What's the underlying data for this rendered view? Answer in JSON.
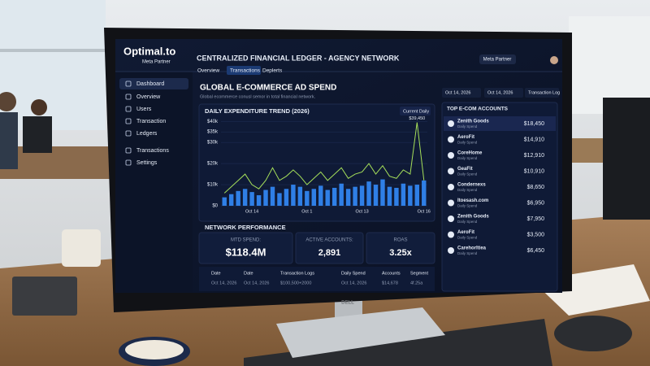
{
  "sidebar": {
    "brand": "Optimal.to",
    "partner": "Meta Partner",
    "nav": [
      "Dashboard",
      "Overview",
      "Users",
      "Transaction",
      "Ledgers",
      "Transactions",
      "Settings"
    ]
  },
  "header": {
    "title": "CENTRALIZED FINANCIAL LEDGER - AGENCY NETWORK",
    "badge": "Meta Partner",
    "tabs": [
      "Overview",
      "Transactions",
      "Deplerts"
    ]
  },
  "main": {
    "title": "GLOBAL E-COMMERCE AD SPEND",
    "subtitle": "Global ecommerce conusl semor in total financial network.",
    "filters": [
      "Oct 14, 2026",
      "Oct 14, 2026",
      "Transaction Log"
    ]
  },
  "chart_data": {
    "type": "bar",
    "title": "DAILY EXPENDITURE TREND (2026)",
    "dropdown": "Current Daily",
    "categories": [
      null,
      null,
      null,
      null,
      "Oct 14",
      null,
      null,
      null,
      null,
      null,
      null,
      null,
      "Oct 1",
      null,
      null,
      null,
      null,
      null,
      null,
      null,
      "Oct 13",
      null,
      null,
      null,
      null,
      null,
      null,
      null,
      null,
      "Oct 16"
    ],
    "series": [
      {
        "color": "#2f7fe6",
        "values": [
          4000,
          5500,
          7000,
          8000,
          6500,
          5000,
          7500,
          9000,
          6000,
          8000,
          10000,
          9000,
          7000,
          8000,
          9500,
          7500,
          8500,
          10500,
          8000,
          9000,
          9500,
          11500,
          10000,
          12500,
          9000,
          8500,
          10500,
          9500,
          10000,
          12000
        ]
      },
      {
        "type": "line",
        "color": "#a6e05a",
        "values": [
          6000,
          9000,
          12000,
          15000,
          10000,
          8000,
          12000,
          18000,
          12000,
          14000,
          17000,
          14000,
          10000,
          13000,
          16000,
          12000,
          15000,
          18000,
          13000,
          15000,
          16000,
          20000,
          15000,
          19000,
          14000,
          13000,
          17000,
          15000,
          39450,
          12000
        ],
        "value_labels": [
          null,
          null,
          null,
          null,
          null,
          null,
          null,
          null,
          null,
          null,
          null,
          null,
          null,
          null,
          null,
          null,
          null,
          null,
          null,
          null,
          null,
          null,
          null,
          null,
          null,
          null,
          null,
          null,
          "$39,450",
          null
        ]
      }
    ],
    "ylim": [
      0,
      42000
    ],
    "yticks": [
      {
        "value": 0,
        "label": "$0"
      },
      {
        "value": 10000,
        "label": "$10k"
      },
      {
        "value": 20000,
        "label": "$20k"
      },
      {
        "value": 30000,
        "label": "$30k"
      },
      {
        "value": 35000,
        "label": "$35k"
      },
      {
        "value": 40000,
        "label": "$40k"
      }
    ],
    "grid": true
  },
  "performance": {
    "title": "NETWORK PERFORMANCE",
    "kpis": [
      {
        "label": "MTD SPEND:",
        "value": "$118.4M"
      },
      {
        "label": "ACTIVE ACCOUNTS:",
        "value": "2,891"
      },
      {
        "label": "ROAS",
        "value": "3.25x"
      }
    ]
  },
  "table": {
    "headers": [
      "Date",
      "Date",
      "Transaction Logs",
      "Daily Spend",
      "Accounts",
      "Segment"
    ],
    "rows": [
      [
        "Oct 14, 2026",
        "Oct 14, 2026",
        "$100,500+2000",
        "Oct 14, 2026",
        "$14,678",
        "4f.25a"
      ]
    ]
  },
  "accounts": {
    "title": "TOP E-COM ACCOUNTS",
    "items": [
      {
        "name": "Zenith Goods",
        "sub": "Daily Spend",
        "value": "$18,450"
      },
      {
        "name": "AeroFit",
        "sub": "Daily Spend",
        "value": "$14,910"
      },
      {
        "name": "CoreHome",
        "sub": "Daily Spend",
        "value": "$12,910"
      },
      {
        "name": "GeaFit",
        "sub": "Daily Spend",
        "value": "$10,910"
      },
      {
        "name": "Condernexs",
        "sub": "Daily Spend",
        "value": "$8,650"
      },
      {
        "name": "Itoesash.com",
        "sub": "Daily Spend",
        "value": "$6,950"
      },
      {
        "name": "Zenith Goods",
        "sub": "Daily Spend",
        "value": "$7,950"
      },
      {
        "name": "AeroFit",
        "sub": "Daily Spend",
        "value": "$3,500"
      },
      {
        "name": "Carehorltiea",
        "sub": "Daily Spend",
        "value": "$6,450"
      }
    ]
  },
  "monitor": {
    "logo": "DELL"
  }
}
